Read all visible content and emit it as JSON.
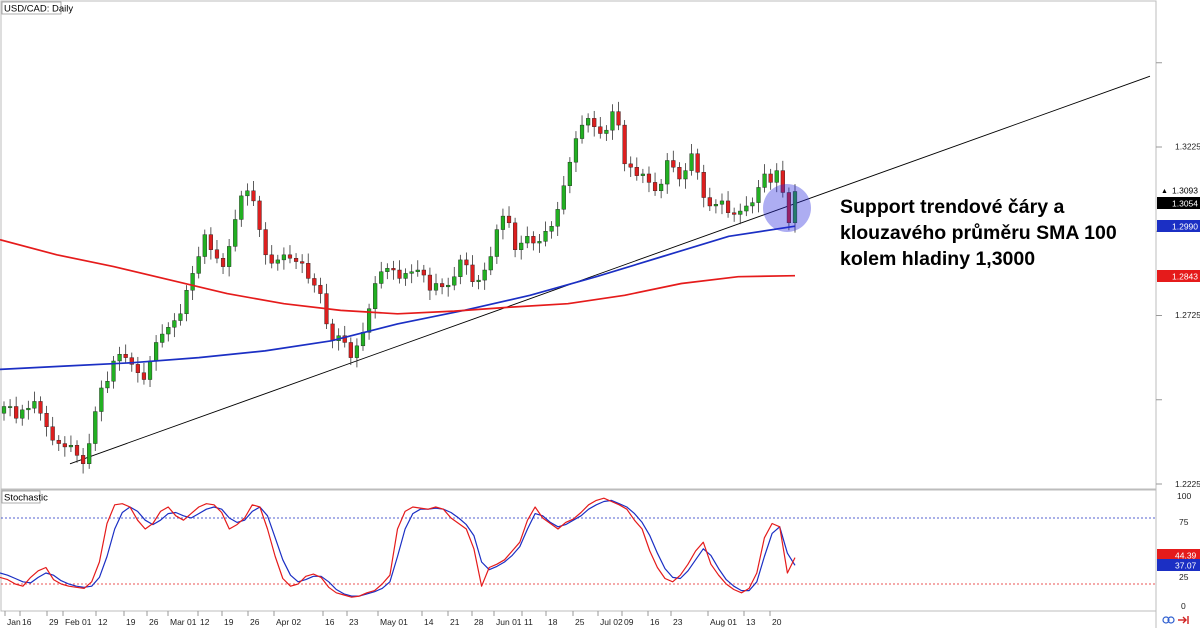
{
  "chart_data": [
    {
      "type": "candlestick",
      "title": "USD/CAD: Daily",
      "y_ticks": [
        "1.3225",
        "1.2725",
        "1.2225"
      ],
      "ylim": [
        1.2225,
        1.3375
      ],
      "x_tick_labels": [
        "Jan",
        "16",
        "29",
        "Feb 01",
        "12",
        "19",
        "26",
        "Mar 01",
        "12",
        "19",
        "26",
        "Apr 02",
        "16",
        "23",
        "May 01",
        "14",
        "21",
        "28",
        "Jun 01",
        "11",
        "18",
        "25",
        "Jul 02",
        "09",
        "16",
        "23",
        "Aug 01",
        "13",
        "20"
      ],
      "price_labels": {
        "last": "1.3093",
        "prev": "1.3054",
        "sma100": "1.2990",
        "sma200": "1.2843"
      },
      "closes": [
        1.2455,
        1.2455,
        1.242,
        1.2445,
        1.245,
        1.247,
        1.2435,
        1.2395,
        1.2355,
        1.2345,
        1.2335,
        1.234,
        1.231,
        1.2285,
        1.2345,
        1.244,
        1.251,
        1.253,
        1.259,
        1.261,
        1.26,
        1.258,
        1.2555,
        1.2535,
        1.259,
        1.2645,
        1.267,
        1.269,
        1.271,
        1.273,
        1.28,
        1.285,
        1.29,
        1.2965,
        1.292,
        1.2895,
        1.287,
        1.293,
        1.301,
        1.308,
        1.3095,
        1.3065,
        1.298,
        1.2905,
        1.288,
        1.289,
        1.2905,
        1.2895,
        1.2885,
        1.288,
        1.2835,
        1.2815,
        1.279,
        1.27,
        1.265,
        1.2665,
        1.2645,
        1.26,
        1.2635,
        1.2675,
        1.2745,
        1.282,
        1.2855,
        1.2865,
        1.286,
        1.2835,
        1.285,
        1.2855,
        1.286,
        1.2845,
        1.28,
        1.282,
        1.281,
        1.2815,
        1.284,
        1.289,
        1.2875,
        1.2825,
        1.283,
        1.286,
        1.29,
        1.298,
        1.302,
        1.3,
        1.292,
        1.294,
        1.296,
        1.294,
        1.2945,
        1.2975,
        1.299,
        1.304,
        1.311,
        1.318,
        1.325,
        1.329,
        1.331,
        1.3285,
        1.3265,
        1.3275,
        1.333,
        1.329,
        1.3175,
        1.3165,
        1.314,
        1.3145,
        1.312,
        1.3095,
        1.3115,
        1.3185,
        1.3165,
        1.313,
        1.3155,
        1.3205,
        1.315,
        1.3075,
        1.305,
        1.3055,
        1.3065,
        1.303,
        1.3025,
        1.3035,
        1.305,
        1.306,
        1.3105,
        1.3145,
        1.312,
        1.3155,
        1.309,
        1.3,
        1.3093
      ],
      "series": [
        {
          "values": [
            1.2565,
            1.2575,
            1.2585,
            1.26,
            1.262,
            1.265,
            1.27,
            1.274,
            1.2785,
            1.284,
            1.29,
            1.296,
            1.299
          ]
        },
        {
          "values": [
            1.295,
            1.2905,
            1.287,
            1.283,
            1.279,
            1.276,
            1.274,
            1.273,
            1.2738,
            1.275,
            1.276,
            1.2785,
            1.282,
            1.284,
            1.2843
          ]
        }
      ],
      "trendline": {
        "from": 1.2285,
        "to": 1.3435
      },
      "annotation": "Support trendové čáry a klouzavého průměru SMA 100 kolem hladiny 1,3000"
    },
    {
      "type": "line",
      "title": "Stochastic",
      "y_ticks": [
        "100",
        "75",
        "25",
        "0"
      ],
      "ylim": [
        0,
        100
      ],
      "value_labels": {
        "k": "44.39",
        "d": "37.07"
      },
      "series": [
        {
          "values": [
            26,
            24,
            20,
            18,
            26,
            32,
            35,
            24,
            20,
            18,
            17,
            16,
            22,
            40,
            75,
            92,
            93,
            90,
            78,
            70,
            75,
            86,
            90,
            82,
            78,
            84,
            90,
            93,
            92,
            85,
            70,
            74,
            80,
            92,
            90,
            70,
            45,
            25,
            18,
            20,
            27,
            29,
            26,
            17,
            12,
            10,
            8,
            9,
            12,
            14,
            20,
            28,
            70,
            86,
            90,
            89,
            88,
            90,
            88,
            80,
            75,
            70,
            52,
            18,
            35,
            38,
            42,
            50,
            58,
            78,
            90,
            80,
            75,
            70,
            76,
            79,
            85,
            92,
            96,
            98,
            95,
            92,
            88,
            78,
            70,
            50,
            35,
            25,
            22,
            28,
            38,
            50,
            58,
            38,
            28,
            20,
            15,
            12,
            16,
            30,
            62,
            75,
            72,
            30,
            44
          ]
        },
        {
          "values": [
            30,
            28,
            25,
            22,
            21,
            26,
            30,
            28,
            23,
            20,
            18,
            17,
            18,
            26,
            45,
            70,
            85,
            90,
            86,
            78,
            74,
            78,
            84,
            85,
            82,
            80,
            84,
            88,
            90,
            88,
            80,
            76,
            78,
            86,
            90,
            82,
            62,
            42,
            28,
            22,
            24,
            27,
            27,
            22,
            15,
            11,
            9,
            9,
            11,
            13,
            16,
            22,
            45,
            70,
            84,
            88,
            88,
            89,
            88,
            85,
            80,
            74,
            64,
            40,
            33,
            36,
            40,
            46,
            54,
            70,
            84,
            82,
            76,
            72,
            74,
            78,
            82,
            88,
            92,
            95,
            96,
            93,
            90,
            84,
            76,
            64,
            48,
            34,
            26,
            25,
            32,
            42,
            52,
            46,
            34,
            24,
            18,
            14,
            14,
            22,
            45,
            66,
            72,
            48,
            37
          ]
        }
      ]
    }
  ],
  "colors": {
    "bull": "#22b022",
    "bear": "#dd1f1f",
    "sma100": "#1b2fc4",
    "sma200": "#e51b1b",
    "stoch_k": "#e51b1b",
    "stoch_d": "#1b2fc4",
    "trendline": "#000000",
    "highlight": "rgba(40,40,220,0.38)",
    "label_last": "#000000",
    "label_sma100": "#1b2fc4",
    "label_sma200": "#e51b1b"
  }
}
